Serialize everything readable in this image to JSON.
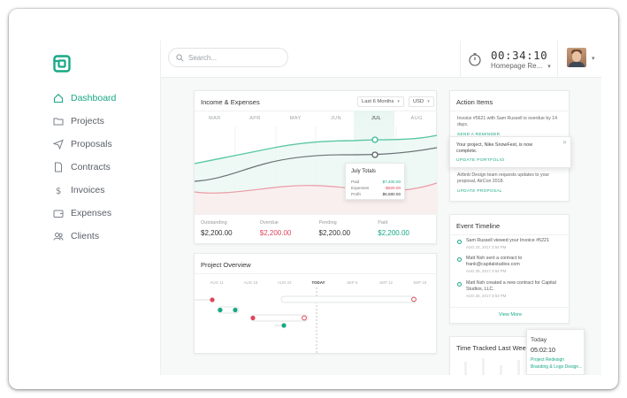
{
  "sidebar": {
    "items": [
      {
        "label": "Dashboard",
        "icon": "home-icon"
      },
      {
        "label": "Projects",
        "icon": "folder-icon"
      },
      {
        "label": "Proposals",
        "icon": "paper-plane-icon"
      },
      {
        "label": "Contracts",
        "icon": "document-icon"
      },
      {
        "label": "Invoices",
        "icon": "dollar-icon"
      },
      {
        "label": "Expenses",
        "icon": "wallet-icon"
      },
      {
        "label": "Clients",
        "icon": "users-icon"
      }
    ]
  },
  "topbar": {
    "search_placeholder": "Search...",
    "timer": "00:34:10",
    "timer_project": "Homepage Re..."
  },
  "income": {
    "title": "Income & Expenses",
    "range": "Last 6 Months",
    "currency": "USD",
    "months": [
      "MAR",
      "APR",
      "MAY",
      "JUN",
      "JUL",
      "AUG"
    ],
    "tooltip": {
      "title": "July Totals",
      "rows": [
        {
          "label": "Paid",
          "value": "$7,400.00"
        },
        {
          "label": "Expenses",
          "value": "-$820.00"
        },
        {
          "label": "Profit",
          "value": "$6,580.00"
        }
      ]
    },
    "totals": [
      {
        "label": "Outstanding",
        "value": "$2,200.00"
      },
      {
        "label": "Overdue",
        "value": "$2,200.00"
      },
      {
        "label": "Pending",
        "value": "$2,200.00"
      },
      {
        "label": "Paid",
        "value": "$2,200.00"
      }
    ]
  },
  "project_overview": {
    "title": "Project Overview",
    "columns": [
      "AUG 11",
      "AUG 15",
      "AUG 22",
      "TODAY",
      "SEP 5",
      "SEP 12",
      "SEP 19"
    ]
  },
  "action_items": {
    "title": "Action Items",
    "items": [
      {
        "text": "Invoice #5621 with Sam Russell is overdue by 14 days.",
        "link": "SEND A REMINDER"
      },
      {
        "text": "Airbnb Design team requests updates to your proposal, AirCon 2018.",
        "link": "UPDATE PROPOSAL"
      }
    ],
    "popup": {
      "text": "Your project, Nike SnowFest, is now complete.",
      "link": "UPDATE PORTFOLIO"
    }
  },
  "event_timeline": {
    "title": "Event Timeline",
    "events": [
      {
        "text": "Sam Russell viewed your Invoice #5221",
        "time": "AUG 22, 2017 3:54 PM"
      },
      {
        "text": "Matt Nsh sent a contract to frank@capitalstudios.com",
        "time": "AUG 25, 2017 3:54 PM"
      },
      {
        "text": "Matt Nsh created a new contract for Capital Studios, LLC.",
        "time": "AUG 26, 2017 3:54 PM"
      }
    ],
    "view_more": "View More"
  },
  "time_tracked": {
    "title": "Time Tracked Last Week",
    "popup_day": "Today",
    "popup_time": "05:02:10",
    "popup_lines": [
      "Project Redesign",
      "Branding & Logo Design..."
    ]
  },
  "colors": {
    "accent": "#17a886",
    "negative": "#e0455a",
    "neutral_line": "#6b7176"
  }
}
